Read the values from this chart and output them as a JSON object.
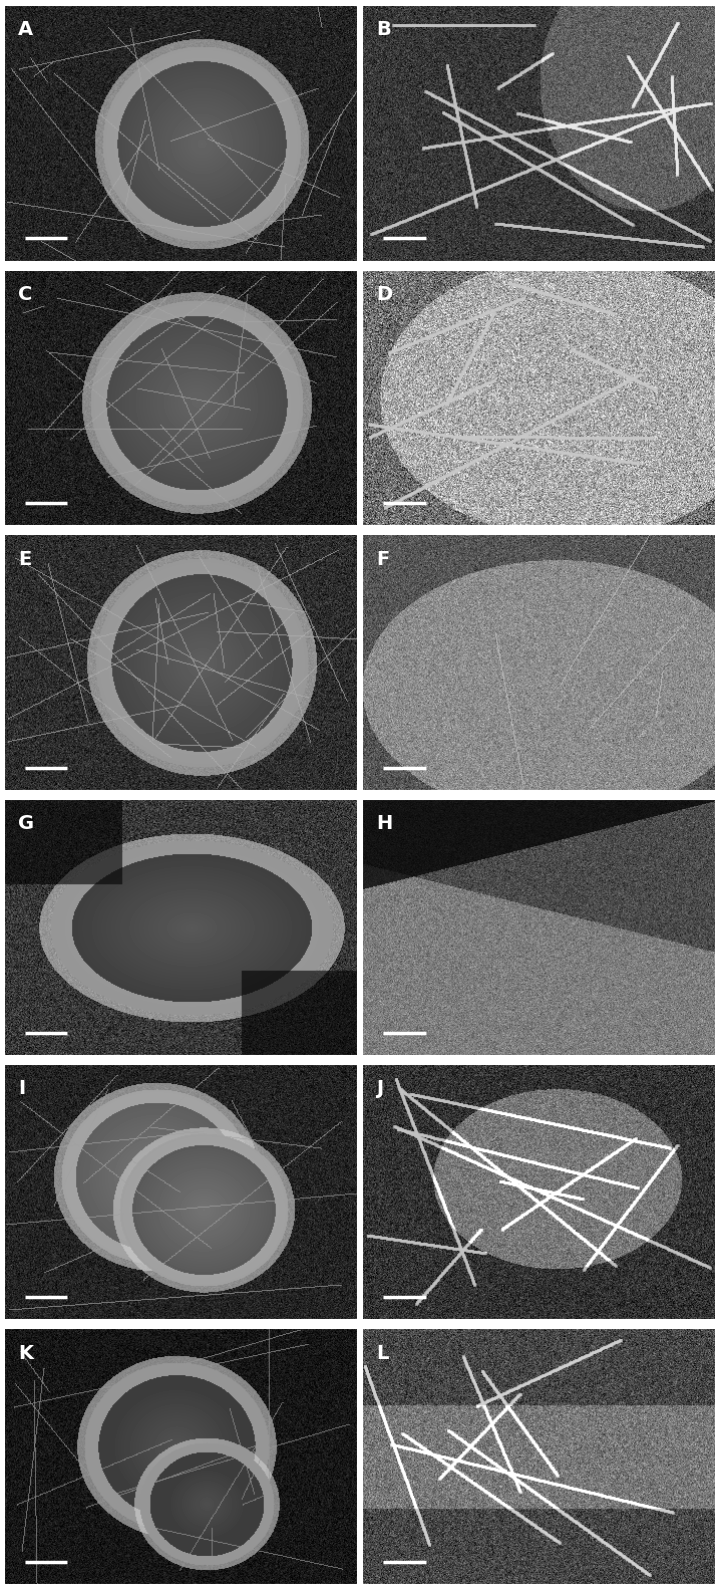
{
  "labels": [
    "A",
    "B",
    "C",
    "D",
    "E",
    "F",
    "G",
    "H",
    "I",
    "J",
    "K",
    "L"
  ],
  "ncols": 2,
  "nrows": 6,
  "fig_width": 7.2,
  "fig_height": 15.9,
  "dpi": 100,
  "bg_color": "#ffffff",
  "label_color": "white",
  "label_fontsize": 14,
  "label_fontweight": "bold",
  "scalebar_color": "white",
  "scalebar_linewidth": 2.5
}
